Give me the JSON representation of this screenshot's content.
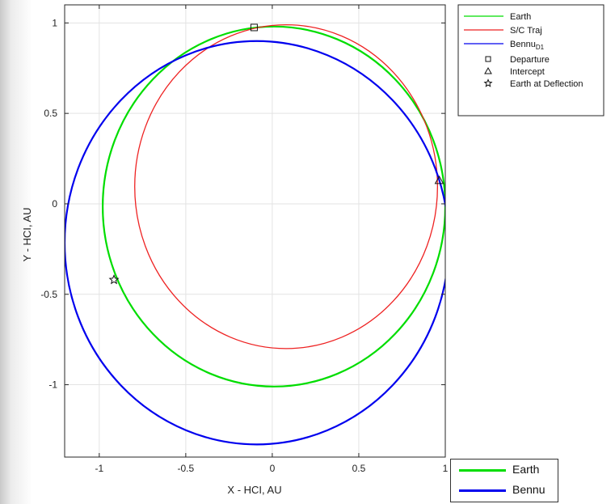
{
  "chart_data": {
    "type": "line",
    "xlabel": "X - HCI, AU",
    "ylabel": "Y - HCI, AU",
    "xlim": [
      -1.2,
      1.0
    ],
    "ylim": [
      -1.4,
      1.1
    ],
    "xticks": [
      -1,
      -0.5,
      0,
      0.5,
      1
    ],
    "xtick_labels": [
      "-1",
      "-0.5",
      "0",
      "0.5",
      "1"
    ],
    "yticks": [
      1,
      0.5,
      0,
      -0.5,
      -1
    ],
    "ytick_labels": [
      "1",
      "0.5",
      "0",
      "-0.5",
      "-1"
    ],
    "grid": true,
    "legend_position": "outside top-right",
    "series": [
      {
        "name": "Earth",
        "kind": "ellipse",
        "center": [
          0.01,
          -0.015
        ],
        "radii": [
          0.99,
          0.995
        ],
        "color": "#00dd00"
      },
      {
        "name": "S/C Traj",
        "kind": "ellipse",
        "center": [
          0.08,
          0.095
        ],
        "radii": [
          0.875,
          0.895
        ],
        "color": "#ee2222"
      },
      {
        "name": "Bennu_D1",
        "kind": "ellipse",
        "center": [
          -0.09,
          -0.215
        ],
        "radii": [
          1.11,
          1.115
        ],
        "color": "#0000ee"
      }
    ],
    "markers": [
      {
        "name": "Departure",
        "symbol": "square",
        "x": -0.105,
        "y": 0.975
      },
      {
        "name": "Intercept",
        "symbol": "triangle",
        "x": 0.965,
        "y": 0.13
      },
      {
        "name": "Earth at Deflection",
        "symbol": "star",
        "x": -0.915,
        "y": -0.42
      }
    ]
  },
  "legend": {
    "items": [
      {
        "label": "Earth",
        "color": "#00dd00",
        "type": "line"
      },
      {
        "label": "S/C Traj",
        "color": "#ee2222",
        "type": "line"
      },
      {
        "label": "Bennu",
        "subscript": "D1",
        "color": "#0000ee",
        "type": "line"
      },
      {
        "label": "Departure",
        "type": "square"
      },
      {
        "label": "Intercept",
        "type": "triangle"
      },
      {
        "label": "Earth at Deflection",
        "type": "star"
      }
    ]
  },
  "legend2": {
    "items": [
      {
        "label": "Earth",
        "color": "#00dd00"
      },
      {
        "label": "Bennu",
        "color": "#0000ee"
      }
    ]
  }
}
